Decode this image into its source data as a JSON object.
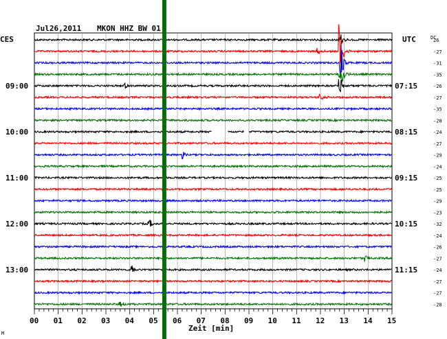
{
  "header": {
    "date": "Jul26,2011",
    "station": "MKON HHZ BW 01",
    "left_zone": "CES",
    "right_zone": "UTC",
    "dc_label": "DC"
  },
  "chart_data": {
    "type": "line",
    "title": "Jul26,2011   MKON HHZ BW 01",
    "xlabel": "Zeit [min]",
    "xlim": [
      0,
      15
    ],
    "x_ticks": [
      "00",
      "01",
      "02",
      "03",
      "04",
      "05",
      "06",
      "07",
      "08",
      "09",
      "10",
      "11",
      "12",
      "13",
      "14",
      "15"
    ],
    "trace_count": 24,
    "trace_colors": [
      "#000000",
      "#ff0000",
      "#0000ff",
      "#007000"
    ],
    "left_hour_labels": [
      {
        "trace": 4,
        "text": "09:00"
      },
      {
        "trace": 8,
        "text": "10:00"
      },
      {
        "trace": 12,
        "text": "11:00"
      },
      {
        "trace": 16,
        "text": "12:00"
      },
      {
        "trace": 20,
        "text": "13:00"
      }
    ],
    "right_hour_labels": [
      {
        "trace": 4,
        "text": "07:15"
      },
      {
        "trace": 8,
        "text": "08:15"
      },
      {
        "trace": 12,
        "text": "09:15"
      },
      {
        "trace": 16,
        "text": "10:15"
      },
      {
        "trace": 20,
        "text": "11:15"
      }
    ],
    "dc_offsets": [
      "26",
      "-27",
      "-31",
      "-35",
      "-26",
      "-27",
      "-35",
      "-28",
      "-24",
      "-27",
      "-29",
      "-24",
      "-25",
      "-25",
      "-29",
      "-23",
      "-32",
      "-24",
      "-26",
      "-27",
      "-24",
      "-27",
      "-27",
      "-28"
    ],
    "marker_line": {
      "x_min": 5.45,
      "color": "#0a6b0a"
    },
    "events": [
      {
        "trace": 0,
        "x": 12.8,
        "amp": 18
      },
      {
        "trace": 1,
        "x": 12.8,
        "amp": 40
      },
      {
        "trace": 2,
        "x": 12.85,
        "amp": 30
      },
      {
        "trace": 3,
        "x": 12.8,
        "amp": 35
      },
      {
        "trace": 4,
        "x": 12.8,
        "amp": 18
      },
      {
        "trace": 5,
        "x": 12.0,
        "amp": 6
      },
      {
        "trace": 4,
        "x": 3.8,
        "amp": 5
      },
      {
        "trace": 1,
        "x": 11.9,
        "amp": 5
      },
      {
        "trace": 10,
        "x": 6.2,
        "amp": 7
      },
      {
        "trace": 16,
        "x": 4.8,
        "amp": 9
      },
      {
        "trace": 20,
        "x": 4.1,
        "amp": 10
      },
      {
        "trace": 19,
        "x": 13.9,
        "amp": 5
      },
      {
        "trace": 23,
        "x": 3.6,
        "amp": 4
      }
    ],
    "gaps": [
      {
        "trace": 8,
        "x0": 7.45,
        "x1": 8.1
      },
      {
        "trace": 8,
        "x0": 8.8,
        "x1": 9.0
      }
    ]
  }
}
